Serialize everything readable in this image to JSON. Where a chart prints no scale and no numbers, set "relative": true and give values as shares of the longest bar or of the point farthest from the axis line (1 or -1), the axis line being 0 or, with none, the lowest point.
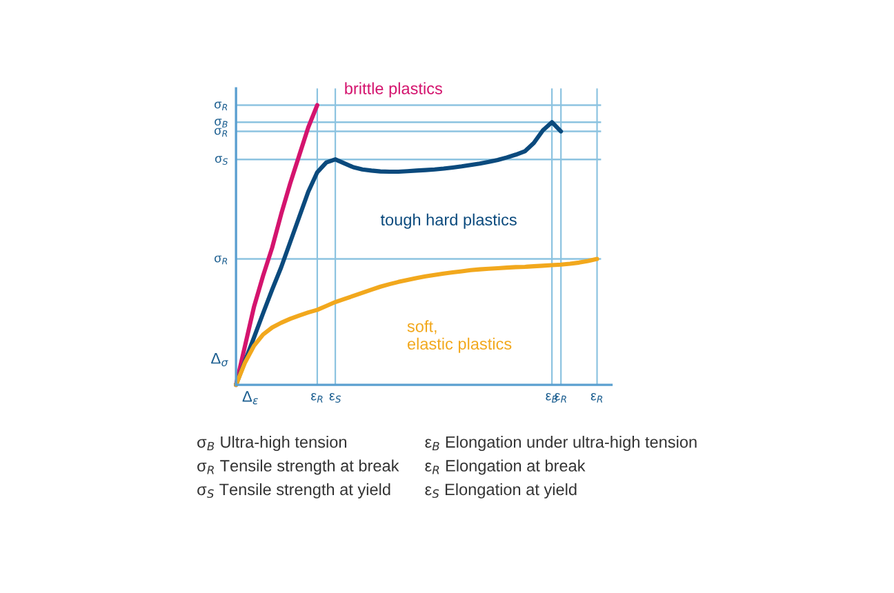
{
  "chart_data": {
    "type": "line",
    "relative": true,
    "legend": false,
    "grid": "x",
    "marker": "none",
    "line_style": "solid",
    "categories": [
      null,
      null,
      null,
      null,
      null,
      null,
      null,
      null,
      null,
      "ε$_{R}$",
      null,
      "ε$_{S}$",
      null,
      null,
      null,
      null,
      null,
      null,
      null,
      null,
      null,
      null,
      null,
      null,
      null,
      null,
      null,
      null,
      null,
      null,
      null,
      null,
      null,
      null,
      null,
      "ε$_{B}$",
      "ε$_{R}$",
      null,
      null,
      null,
      "ε$_{R}$"
    ],
    "series": [
      {
        "name": "brittle plastics",
        "color": "#d4146e",
        "values": [
          0,
          0.14,
          0.28,
          0.39,
          0.49,
          0.61,
          0.72,
          0.82,
          0.92,
          1.0,
          null,
          null,
          null,
          null,
          null,
          null,
          null,
          null,
          null,
          null,
          null,
          null,
          null,
          null,
          null,
          null,
          null,
          null,
          null,
          null,
          null,
          null,
          null,
          null,
          null,
          null,
          null,
          null,
          null,
          null,
          null
        ]
      },
      {
        "name": "tough hard plastics",
        "color": "#0b4a7d",
        "values": [
          0,
          0.085,
          0.17,
          0.256,
          0.34,
          0.42,
          0.51,
          0.6,
          0.69,
          0.76,
          0.795,
          0.806,
          0.792,
          0.778,
          0.77,
          0.766,
          0.763,
          0.762,
          0.762,
          0.764,
          0.766,
          0.768,
          0.77,
          0.773,
          0.777,
          0.781,
          0.786,
          0.791,
          0.797,
          0.804,
          0.813,
          0.823,
          0.835,
          0.865,
          0.91,
          0.939,
          0.906,
          null,
          null,
          null,
          null
        ]
      },
      {
        "name": "soft,\nelastic plastics",
        "color": "#f2a81d",
        "values": [
          0,
          0.08,
          0.14,
          0.18,
          0.205,
          0.222,
          0.236,
          0.248,
          0.259,
          0.268,
          0.282,
          0.296,
          0.307,
          0.318,
          0.329,
          0.34,
          0.351,
          0.36,
          0.368,
          0.375,
          0.382,
          0.388,
          0.393,
          0.398,
          0.402,
          0.406,
          0.41,
          0.413,
          0.415,
          0.417,
          0.419,
          0.421,
          0.422,
          0.424,
          0.426,
          0.428,
          0.43,
          0.433,
          0.437,
          0.443,
          0.45
        ]
      }
    ],
    "ref_lines": [
      {
        "axis": "y",
        "value": 0.45,
        "label": "σ$_{R}$",
        "color": "#8cc3e0"
      },
      {
        "axis": "y",
        "value": 0.806,
        "label": "σ$_{S}$",
        "color": "#8cc3e0"
      },
      {
        "axis": "y",
        "value": 0.906,
        "label": "σ$_{R}$",
        "color": "#8cc3e0"
      },
      {
        "axis": "y",
        "value": 0.939,
        "label": "σ$_{B}$",
        "color": "#8cc3e0"
      },
      {
        "axis": "y",
        "value": 1.0,
        "label": "σ$_{R}$",
        "color": "#8cc3e0"
      }
    ],
    "annotations": [
      "Δ$_{σ}$",
      "Δ$_{ε}$",
      "σ$_{B}$ Ultra-high tension",
      "σ$_{R}$ Tensile strength at break",
      "σ$_{S}$ Tensile strength at yield",
      "ε$_{B}$ Elongation under ultra-high tension",
      "ε$_{R}$ Elongation at break",
      "ε$_{S}$ Elongation at yield"
    ]
  }
}
